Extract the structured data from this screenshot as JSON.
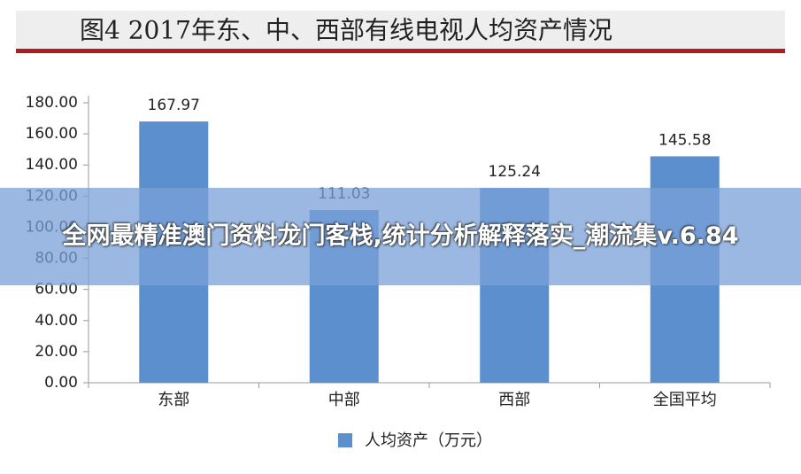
{
  "chart_data": {
    "type": "bar",
    "title": "图4  2017年东、中、西部有线电视人均资产情况",
    "categories": [
      "东部",
      "中部",
      "西部",
      "全国平均"
    ],
    "series": [
      {
        "name": "人均资产（万元）",
        "color": "#5b8fcd",
        "values": [
          167.97,
          111.03,
          125.24,
          145.58
        ]
      }
    ],
    "ylim": [
      0,
      180
    ],
    "yticks": [
      {
        "value": 0,
        "label": "0.00"
      },
      {
        "value": 20,
        "label": "20.00"
      },
      {
        "value": 40,
        "label": "40.00"
      },
      {
        "value": 60,
        "label": "60.00"
      },
      {
        "value": 80,
        "label": "80.00"
      },
      {
        "value": 100,
        "label": "100.00"
      },
      {
        "value": 120,
        "label": "120.00"
      },
      {
        "value": 140,
        "label": "140.00"
      },
      {
        "value": 160,
        "label": "160.00"
      },
      {
        "value": 180,
        "label": "180.00"
      }
    ],
    "grid": false,
    "legend": "bottom"
  },
  "overlay": {
    "text": "全网最精准澳门资料龙门客栈,统计分析解释落实_潮流集v.6.84"
  }
}
